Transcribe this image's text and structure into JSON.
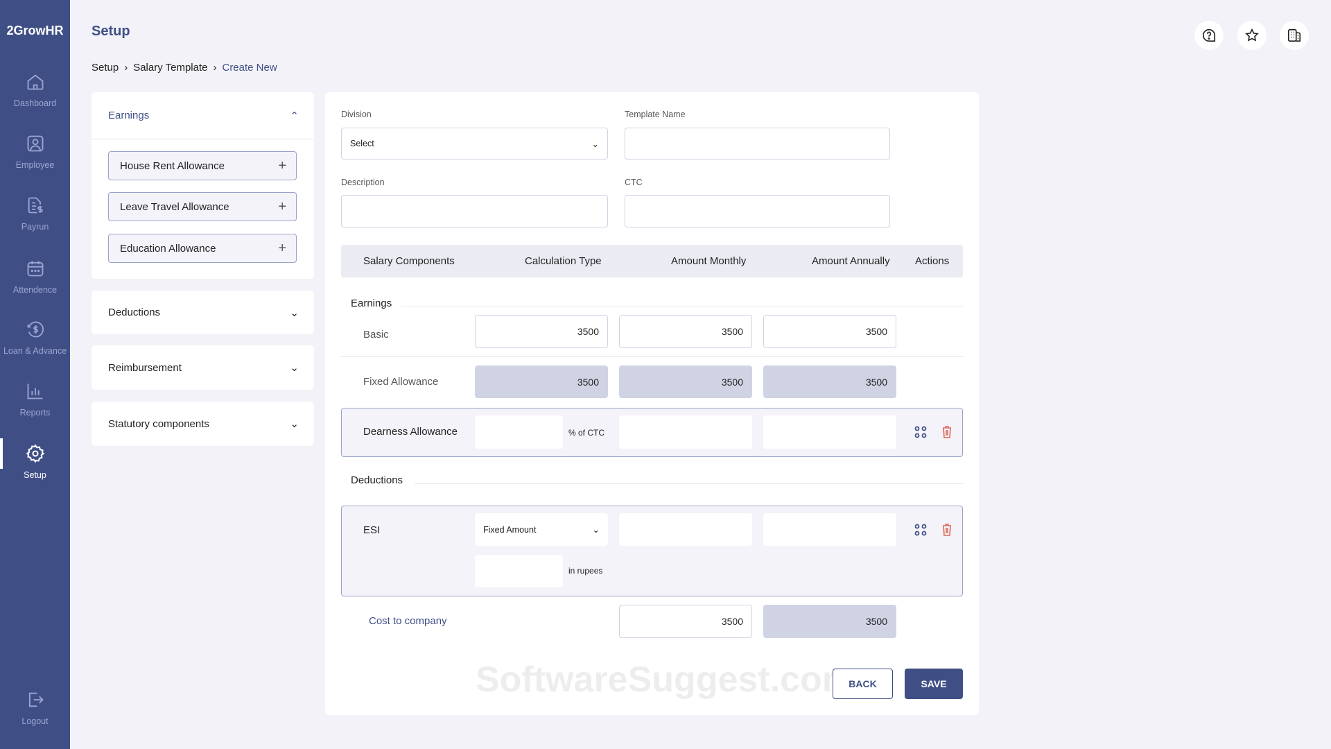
{
  "app": {
    "logo": "2GrowHR"
  },
  "sidebar": {
    "items": [
      {
        "label": "Dashboard",
        "icon": "home-icon"
      },
      {
        "label": "Employee",
        "icon": "user-icon"
      },
      {
        "label": "Payrun",
        "icon": "payroll-icon"
      },
      {
        "label": "Attendence",
        "icon": "calendar-icon"
      },
      {
        "label": "Loan & Advance",
        "icon": "loan-icon"
      },
      {
        "label": "Reports",
        "icon": "chart-icon"
      },
      {
        "label": "Setup",
        "icon": "gear-icon",
        "active": true
      }
    ],
    "logout": "Logout"
  },
  "header": {
    "title": "Setup",
    "breadcrumb": [
      "Setup",
      "Salary Template",
      "Create New"
    ]
  },
  "left": {
    "earnings": {
      "title": "Earnings",
      "items": [
        "House Rent Allowance",
        "Leave Travel Allowance",
        "Education Allowance"
      ]
    },
    "sections": [
      "Deductions",
      "Reimbursement",
      "Statutory components"
    ]
  },
  "form": {
    "division_label": "Division",
    "division_value": "Select",
    "template_label": "Template Name",
    "template_value": "",
    "description_label": "Description",
    "description_value": "",
    "ctc_label": "CTC",
    "ctc_value": ""
  },
  "table": {
    "headers": [
      "Salary Components",
      "Calculation Type",
      "Amount Monthly",
      "Amount Annually",
      "Actions"
    ],
    "earnings_label": "Earnings",
    "basic": {
      "name": "Basic",
      "calc": "3500",
      "monthly": "3500",
      "annually": "3500"
    },
    "fixed": {
      "name": "Fixed Allowance",
      "calc": "3500",
      "monthly": "3500",
      "annually": "3500"
    },
    "dearness": {
      "name": "Dearness Allowance",
      "calc": "",
      "unit": "% of CTC",
      "monthly": "",
      "annually": ""
    },
    "deductions_label": "Deductions",
    "esi": {
      "name": "ESI",
      "calc": "Fixed Amount",
      "amount": "",
      "unit": "in rupees",
      "monthly": "",
      "annually": ""
    },
    "ctc": {
      "name": "Cost to company",
      "monthly": "3500",
      "annually": "3500"
    }
  },
  "buttons": {
    "back": "BACK",
    "save": "SAVE"
  },
  "watermark": "SoftwareSuggest.com",
  "colors": {
    "primary": "#3f4f86",
    "danger": "#e0685a",
    "background": "#f2f2f8"
  }
}
